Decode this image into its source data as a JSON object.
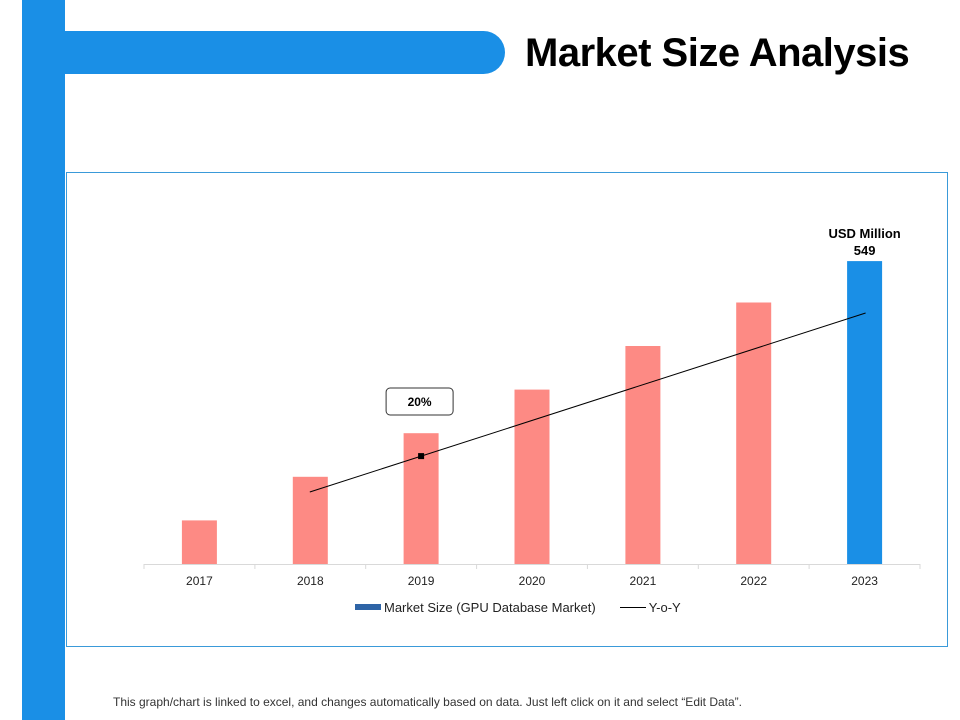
{
  "slide": {
    "title": "Market Size Analysis",
    "footnote": "This graph/chart is linked to excel, and changes automatically based on data. Just left click on it and select “Edit Data”."
  },
  "colors": {
    "accent": "#1a8fe6",
    "bar": "#fd8a84",
    "highlight_bar": "#1a8fe6",
    "legend_bar": "#2e64a6",
    "line": "#000000"
  },
  "chart_data": {
    "type": "bar",
    "categories": [
      "2017",
      "2018",
      "2019",
      "2020",
      "2021",
      "2022",
      "2023"
    ],
    "series": [
      {
        "name": "Market Size (GPU Database Market)",
        "type": "bar",
        "values": [
          79,
          158,
          237,
          316,
          395,
          474,
          549
        ]
      },
      {
        "name": "Y-o-Y",
        "type": "line",
        "x_range": [
          "2018",
          "2023"
        ]
      }
    ],
    "highlight": {
      "category": "2023",
      "unit_label": "USD Million",
      "value_label": "549"
    },
    "callout": {
      "category": "2019",
      "label": "20%"
    },
    "ylim": [
      0,
      560
    ],
    "y_axis_visible": false,
    "grid": false,
    "legend_position": "bottom"
  }
}
